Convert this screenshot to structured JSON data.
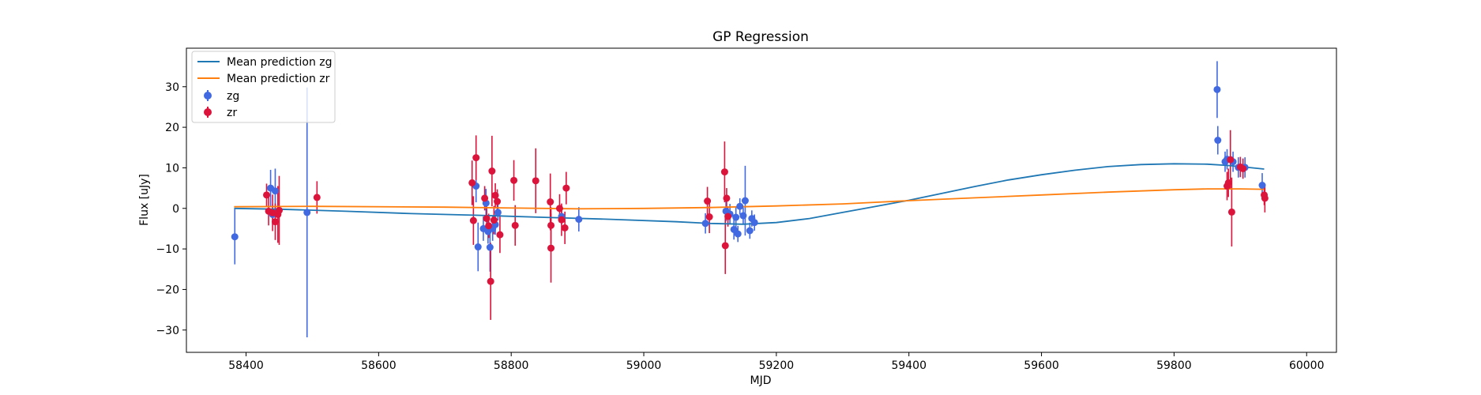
{
  "chart_data": {
    "type": "scatter",
    "title": "GP Regression",
    "xlabel": "MJD",
    "ylabel": "Flux [uJy]",
    "xlim": [
      58310,
      60045
    ],
    "ylim": [
      -35.5,
      39.5
    ],
    "xticks": [
      58400,
      58600,
      58800,
      59000,
      59200,
      59400,
      59600,
      59800,
      60000
    ],
    "yticks": [
      -30,
      -20,
      -10,
      0,
      10,
      20,
      30
    ],
    "grid": false,
    "legend_position": "top-left",
    "colors": {
      "zg_line": "#1f77b4",
      "zr_line": "#ff7f0e",
      "zg_points": "#4169e1",
      "zr_points": "#dc143c"
    },
    "lines": [
      {
        "name": "Mean prediction zg",
        "x": [
          58382,
          58450,
          58550,
          58650,
          58750,
          58850,
          58950,
          59050,
          59100,
          59150,
          59200,
          59250,
          59300,
          59350,
          59400,
          59450,
          59500,
          59550,
          59600,
          59650,
          59700,
          59750,
          59800,
          59850,
          59880,
          59900,
          59936
        ],
        "y": [
          0.0,
          -0.2,
          -0.7,
          -1.3,
          -1.7,
          -2.2,
          -2.7,
          -3.3,
          -3.7,
          -3.9,
          -3.5,
          -2.5,
          -1.0,
          0.5,
          2.0,
          3.7,
          5.4,
          7.0,
          8.3,
          9.4,
          10.3,
          10.8,
          11.0,
          10.9,
          10.6,
          10.3,
          9.7
        ]
      },
      {
        "name": "Mean prediction zr",
        "x": [
          58382,
          58500,
          58700,
          58900,
          59000,
          59100,
          59200,
          59300,
          59400,
          59500,
          59600,
          59700,
          59800,
          59850,
          59900,
          59936
        ],
        "y": [
          0.4,
          0.5,
          0.3,
          -0.1,
          0.0,
          0.2,
          0.6,
          1.1,
          1.9,
          2.6,
          3.3,
          4.0,
          4.6,
          4.8,
          4.8,
          4.7
        ]
      }
    ],
    "series": [
      {
        "name": "zg",
        "points": [
          [
            58383,
            -7.0,
            6.8
          ],
          [
            58437,
            5.0,
            4.5
          ],
          [
            58440,
            -1.5,
            2.5
          ],
          [
            58444,
            4.3,
            5.5
          ],
          [
            58448,
            -1.2,
            2.5
          ],
          [
            58492,
            -1.0,
            30.8
          ],
          [
            58747,
            5.5,
            4.0
          ],
          [
            58750,
            -9.5,
            6.0
          ],
          [
            58758,
            -5.0,
            3.0
          ],
          [
            58762,
            1.3,
            3.5
          ],
          [
            58765,
            -5.7,
            3.0
          ],
          [
            58768,
            -9.6,
            6.0
          ],
          [
            58772,
            -5.0,
            3.0
          ],
          [
            58776,
            -4.0,
            2.5
          ],
          [
            58780,
            -1.0,
            2.0
          ],
          [
            58876,
            -2.0,
            2.0
          ],
          [
            58902,
            -2.7,
            3.0
          ],
          [
            59093,
            -3.7,
            2.5
          ],
          [
            59124,
            -0.7,
            2.5
          ],
          [
            59130,
            -1.4,
            2.5
          ],
          [
            59136,
            -5.2,
            2.5
          ],
          [
            59139,
            -2.2,
            2.5
          ],
          [
            59142,
            -6.3,
            2.0
          ],
          [
            59145,
            0.5,
            2.0
          ],
          [
            59150,
            -1.8,
            2.0
          ],
          [
            59153,
            1.9,
            8.6
          ],
          [
            59160,
            -5.5,
            2.0
          ],
          [
            59163,
            -2.5,
            2.0
          ],
          [
            59167,
            -3.5,
            2.0
          ],
          [
            59865,
            29.3,
            7.0
          ],
          [
            59866,
            16.8,
            3.5
          ],
          [
            59877,
            11.5,
            2.5
          ],
          [
            59880,
            12.1,
            2.5
          ],
          [
            59889,
            11.5,
            2.5
          ],
          [
            59897,
            10.1,
            2.5
          ],
          [
            59907,
            10.1,
            2.5
          ],
          [
            59933,
            5.7,
            3.0
          ]
        ]
      },
      {
        "name": "zr",
        "points": [
          [
            58431,
            3.3,
            2.8
          ],
          [
            58434,
            -0.7,
            3.5
          ],
          [
            58440,
            -1.1,
            4.5
          ],
          [
            58444,
            -3.3,
            4.5
          ],
          [
            58448,
            -1.5,
            7.0
          ],
          [
            58450,
            -0.5,
            8.5
          ],
          [
            58507,
            2.7,
            4.0
          ],
          [
            58741,
            6.3,
            5.5
          ],
          [
            58743,
            -3.0,
            6.0
          ],
          [
            58747,
            12.5,
            5.5
          ],
          [
            58760,
            2.5,
            3.0
          ],
          [
            58763,
            -2.5,
            3.0
          ],
          [
            58766,
            -4.3,
            3.0
          ],
          [
            58769,
            -18.0,
            9.5
          ],
          [
            58771,
            9.2,
            8.7
          ],
          [
            58774,
            -2.9,
            3.5
          ],
          [
            58776,
            3.2,
            3.0
          ],
          [
            58779,
            1.7,
            3.0
          ],
          [
            58783,
            -6.5,
            4.5
          ],
          [
            58804,
            6.9,
            5.0
          ],
          [
            58806,
            -4.2,
            5.0
          ],
          [
            58837,
            6.8,
            8.0
          ],
          [
            58859,
            1.6,
            7.0
          ],
          [
            58860,
            -4.2,
            4.5
          ],
          [
            58860,
            -9.8,
            8.5
          ],
          [
            58873,
            0.0,
            3.5
          ],
          [
            58876,
            -2.8,
            4.0
          ],
          [
            58881,
            -4.8,
            4.0
          ],
          [
            58883,
            5.0,
            4.0
          ],
          [
            59096,
            1.8,
            3.5
          ],
          [
            59099,
            -2.1,
            4.0
          ],
          [
            59122,
            9.0,
            7.5
          ],
          [
            59123,
            -9.2,
            7.0
          ],
          [
            59125,
            2.5,
            2.5
          ],
          [
            59127,
            -2.0,
            2.5
          ],
          [
            59880,
            5.5,
            3.5
          ],
          [
            59882,
            6.3,
            3.5
          ],
          [
            59885,
            12.0,
            7.3
          ],
          [
            59887,
            -0.9,
            8.5
          ],
          [
            59900,
            10.2,
            2.5
          ],
          [
            59904,
            9.8,
            2.5
          ],
          [
            59936,
            3.3,
            2.5
          ],
          [
            59937,
            2.5,
            3.5
          ]
        ]
      }
    ]
  }
}
